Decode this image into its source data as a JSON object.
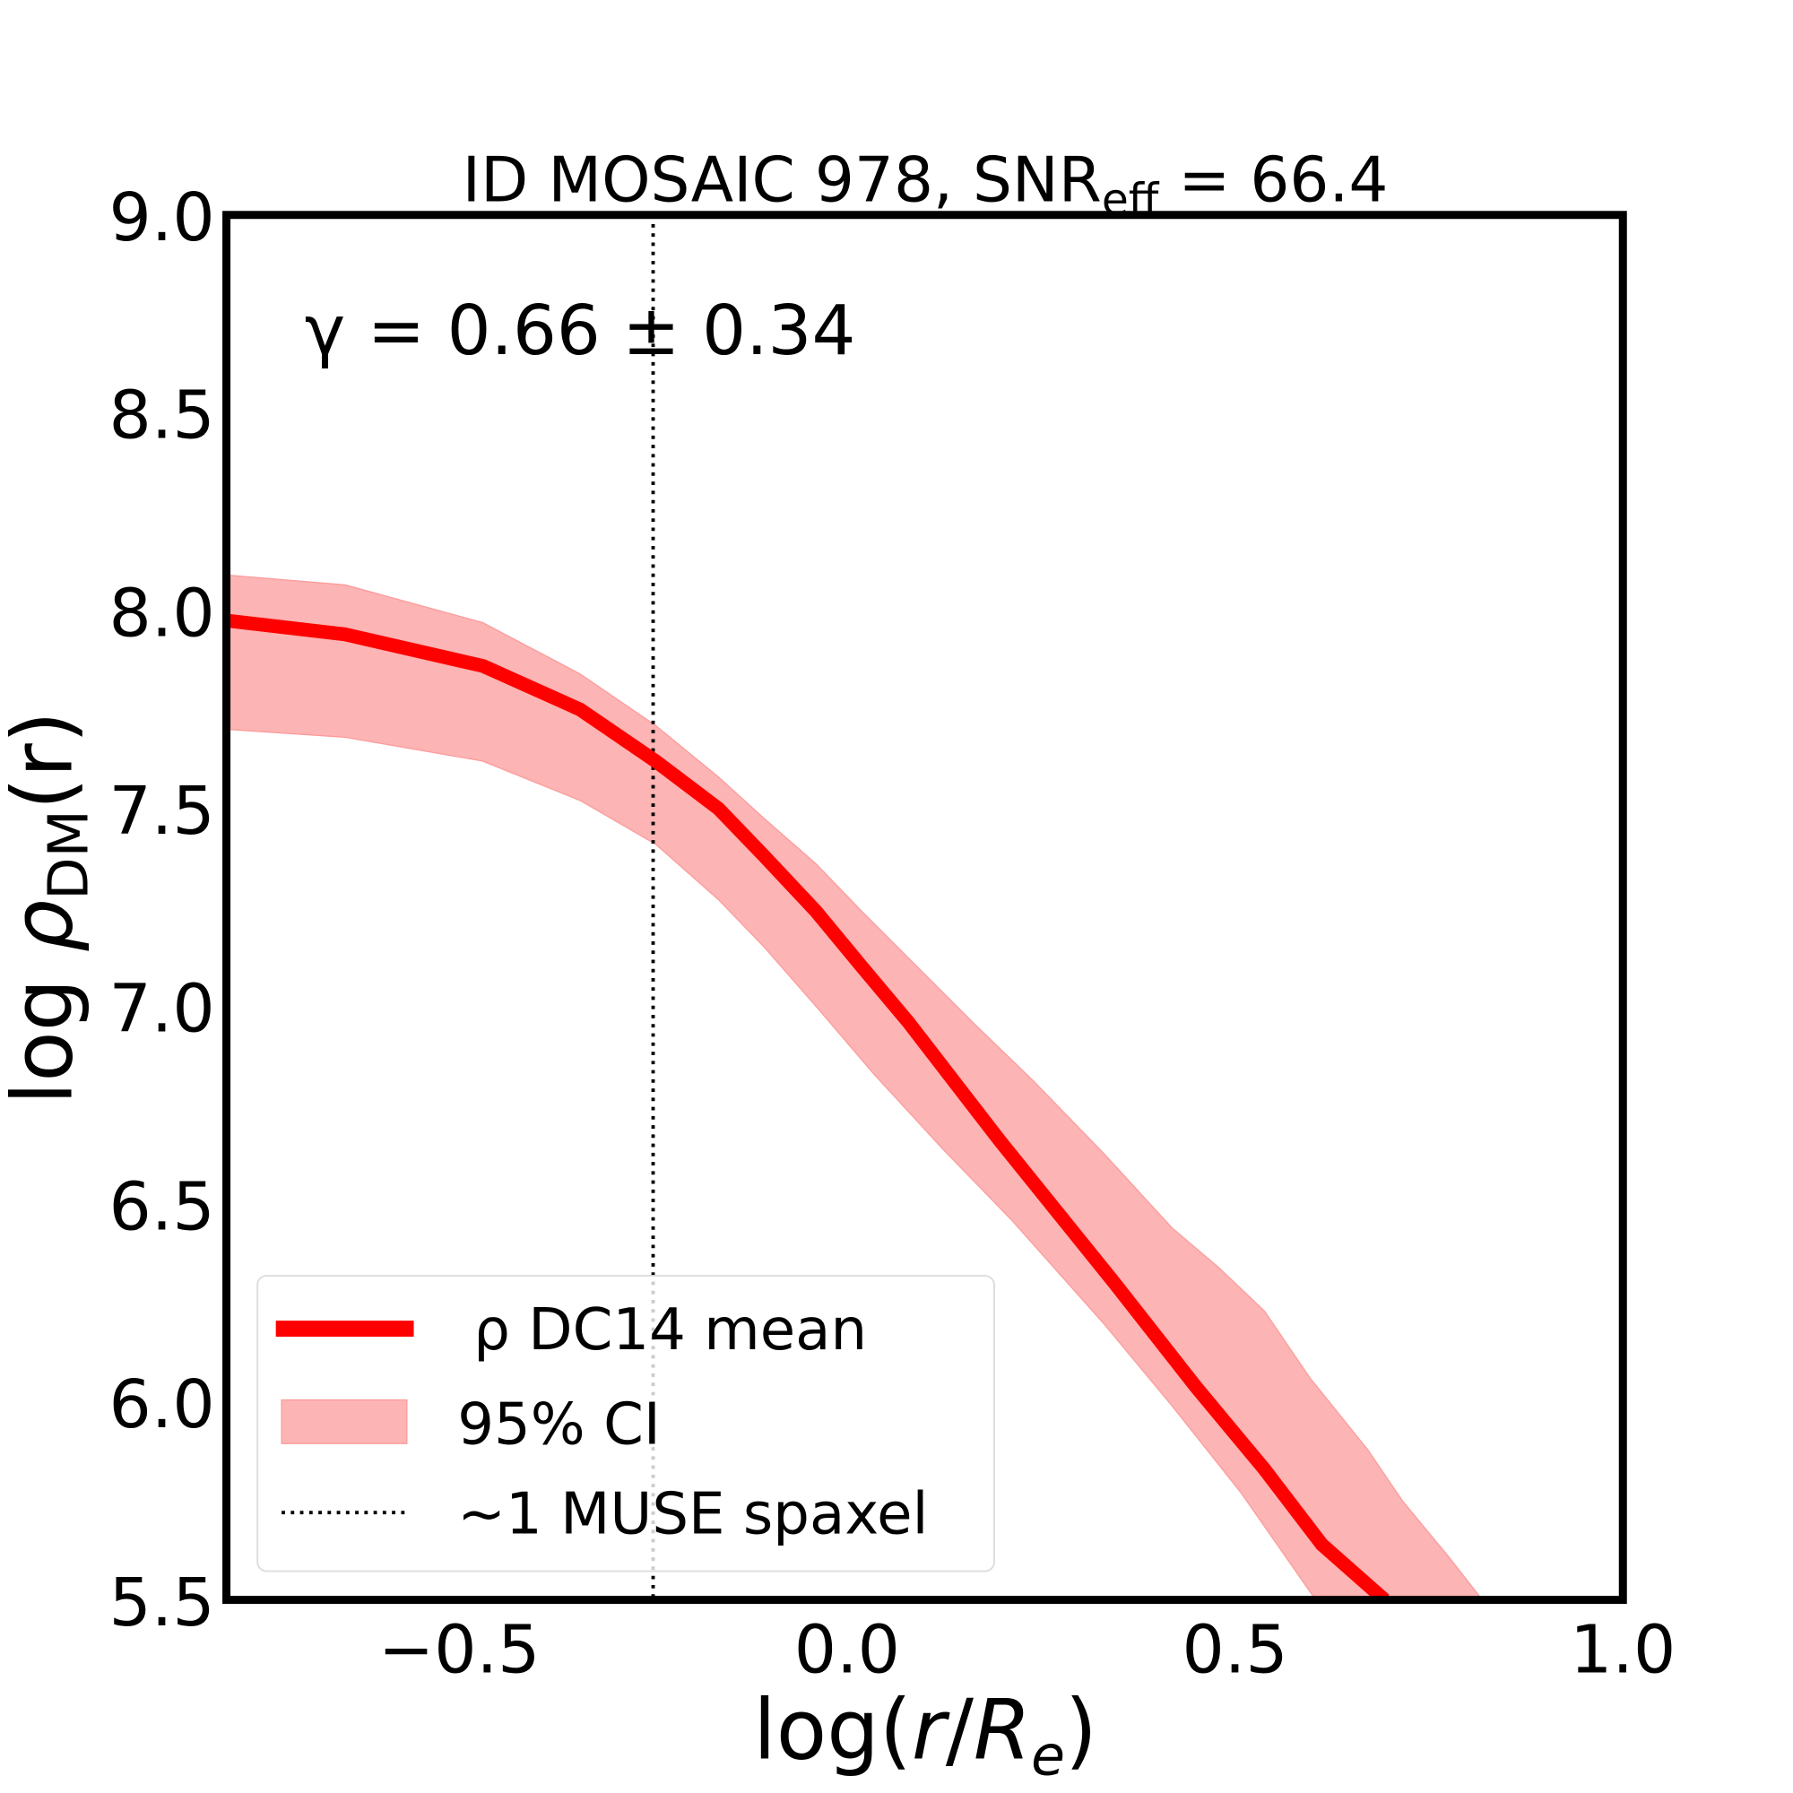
{
  "chart_data": {
    "type": "line",
    "title": "ID MOSAIC 978, SNR",
    "title_sub": "eff",
    "title_value": " = 66.4",
    "annotation": "γ = 0.66 ± 0.34",
    "xlabel": {
      "prefix": "log(",
      "var": "r",
      "slash": "/",
      "var2": "R",
      "sub": "e",
      "suffix": ")"
    },
    "ylabel": {
      "prefix": "log ",
      "var": "ρ",
      "sub": "DM",
      "suffix": "(r)"
    },
    "xlim": [
      -0.8,
      1.0
    ],
    "ylim": [
      5.5,
      9.0
    ],
    "xticks": [
      -0.5,
      0.0,
      0.5,
      1.0
    ],
    "xtick_labels": [
      "−0.5",
      "0.0",
      "0.5",
      "1.0"
    ],
    "yticks": [
      5.5,
      6.0,
      6.5,
      7.0,
      7.5,
      8.0,
      8.5,
      9.0
    ],
    "ytick_labels": [
      "5.5",
      "6.0",
      "6.5",
      "7.0",
      "7.5",
      "8.0",
      "8.5",
      "9.0"
    ],
    "grid": false,
    "legend_position": "lower-left",
    "series": [
      {
        "name": "ρ DC14 mean",
        "color": "#ff0000",
        "x": [
          -0.8,
          -0.647,
          -0.469,
          -0.344,
          -0.247,
          -0.166,
          -0.107,
          -0.04,
          0.019,
          0.079,
          0.138,
          0.197,
          0.271,
          0.345,
          0.449,
          0.538,
          0.612,
          0.693
        ],
        "y": [
          7.975,
          7.94,
          7.86,
          7.75,
          7.62,
          7.5,
          7.38,
          7.24,
          7.1,
          6.96,
          6.81,
          6.66,
          6.48,
          6.3,
          6.04,
          5.83,
          5.64,
          5.5
        ]
      }
    ],
    "band": {
      "name": "95% CI",
      "color": "#fdb4b4",
      "upper": {
        "x": [
          -0.8,
          -0.647,
          -0.47,
          -0.344,
          -0.247,
          -0.166,
          -0.107,
          -0.04,
          0.019,
          0.093,
          0.167,
          0.241,
          0.33,
          0.419,
          0.479,
          0.538,
          0.597,
          0.671,
          0.716,
          0.775,
          0.819
        ],
        "y": [
          8.09,
          8.065,
          7.97,
          7.84,
          7.71,
          7.58,
          7.475,
          7.36,
          7.24,
          7.095,
          6.95,
          6.81,
          6.63,
          6.44,
          6.34,
          6.23,
          6.06,
          5.88,
          5.75,
          5.61,
          5.5
        ]
      },
      "lower": {
        "x": [
          -0.8,
          -0.647,
          -0.47,
          -0.344,
          -0.247,
          -0.166,
          -0.107,
          -0.04,
          0.034,
          0.123,
          0.212,
          0.33,
          0.419,
          0.508,
          0.604
        ],
        "y": [
          7.7,
          7.68,
          7.62,
          7.52,
          7.41,
          7.27,
          7.15,
          7.0,
          6.83,
          6.64,
          6.46,
          6.2,
          5.99,
          5.77,
          5.5
        ]
      }
    },
    "vline": {
      "name": "~1 MUSE spaxel",
      "x": -0.25,
      "style": "dotted",
      "color": "#000000"
    },
    "legend": [
      "ρ DC14 mean",
      "95% CI",
      "~1 MUSE spaxel"
    ]
  }
}
